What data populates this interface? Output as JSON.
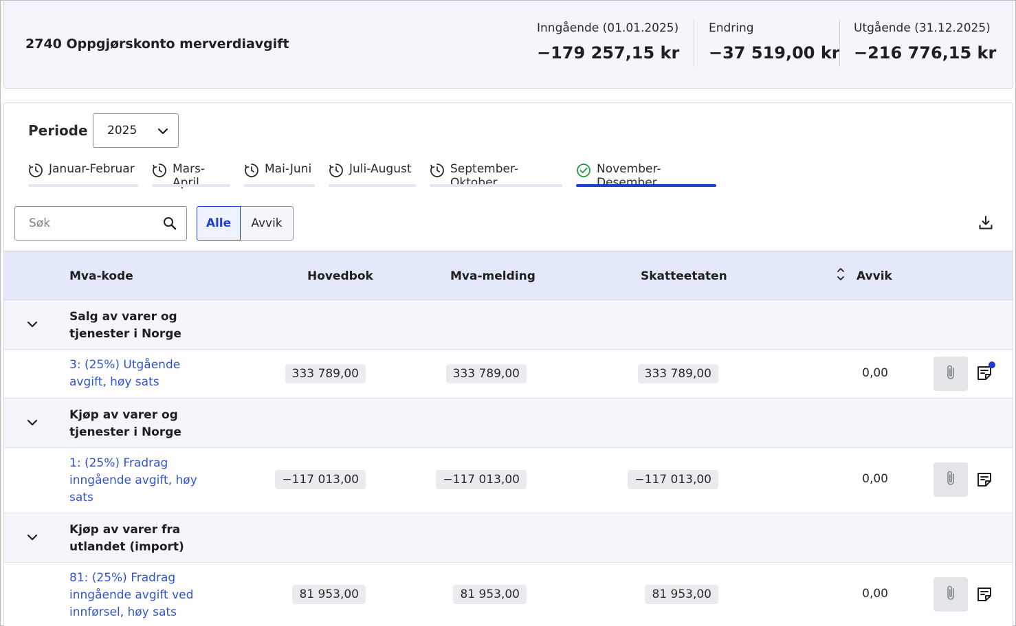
{
  "account": {
    "title": "2740 Oppgjørskonto merverdiavgift"
  },
  "balances": [
    {
      "label": "Inngående (01.01.2025)",
      "value": "−179 257,15 kr"
    },
    {
      "label": "Endring",
      "value": "−37 519,00 kr"
    },
    {
      "label": "Utgående (31.12.2025)",
      "value": "−216 776,15 kr"
    }
  ],
  "period": {
    "label": "Periode",
    "selected_year": "2025"
  },
  "tabs": [
    {
      "label": "Januar-Februar",
      "icon": "clock-icon",
      "active": false
    },
    {
      "label": "Mars-April",
      "icon": "clock-icon",
      "active": false
    },
    {
      "label": "Mai-Juni",
      "icon": "clock-icon",
      "active": false
    },
    {
      "label": "Juli-August",
      "icon": "clock-icon",
      "active": false
    },
    {
      "label": "September-Oktober",
      "icon": "clock-icon",
      "active": false
    },
    {
      "label": "November-Desember",
      "icon": "check-circle-icon",
      "active": true
    }
  ],
  "search": {
    "placeholder": "Søk",
    "value": ""
  },
  "filter": {
    "all_label": "Alle",
    "deviation_label": "Avvik",
    "selected": "Alle"
  },
  "table": {
    "headers": {
      "code": "Mva-kode",
      "ledger": "Hovedbok",
      "vat_return": "Mva-melding",
      "tax_authority": "Skatteetaten",
      "deviation": "Avvik"
    },
    "groups": [
      {
        "name": "Salg av varer og tjenester i Norge",
        "rows": [
          {
            "code": "3: (25%) Utgående avgift, høy sats",
            "ledger": "333 789,00",
            "vat_return": "333 789,00",
            "tax_authority": "333 789,00",
            "deviation": "0,00",
            "has_note_indicator": true
          }
        ]
      },
      {
        "name": "Kjøp av varer og tjenester i Norge",
        "rows": [
          {
            "code": "1: (25%) Fradrag inngående avgift, høy sats",
            "ledger": "−117 013,00",
            "vat_return": "−117 013,00",
            "tax_authority": "−117 013,00",
            "deviation": "0,00",
            "has_note_indicator": false
          }
        ]
      },
      {
        "name": "Kjøp av varer fra utlandet (import)",
        "rows": [
          {
            "code": "81: (25%) Fradrag inngående avgift ved innførsel, høy sats",
            "ledger": "81 953,00",
            "vat_return": "81 953,00",
            "tax_authority": "81 953,00",
            "deviation": "0,00",
            "has_note_indicator": false
          }
        ]
      }
    ]
  },
  "colors": {
    "accent": "#1d3fd6",
    "link": "#2f54d4",
    "header_bg": "#e3e9fb",
    "group_bg": "#f4f6fb",
    "success": "#1f9d3a"
  }
}
